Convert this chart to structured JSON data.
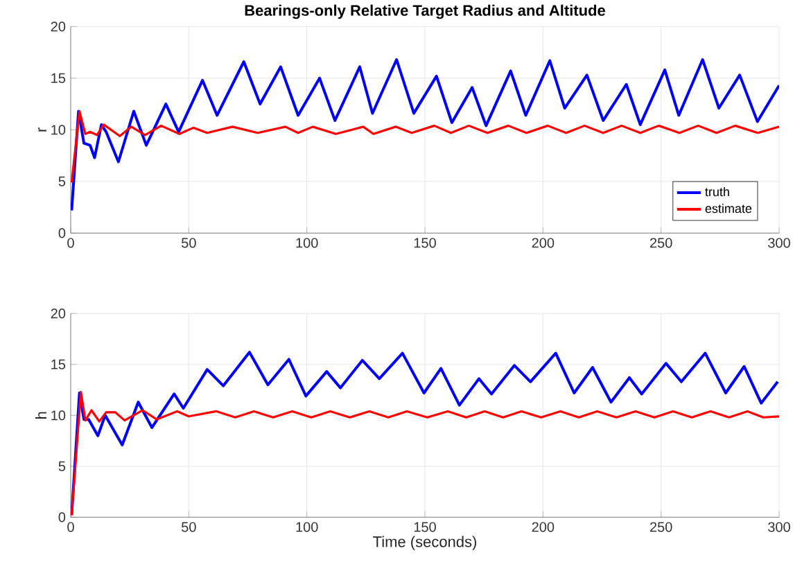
{
  "chart_data": [
    {
      "type": "line",
      "title": "Bearings-only Relative Target Radius and Altitude",
      "ylabel": "r",
      "xlim": [
        0,
        300
      ],
      "ylim": [
        0,
        20
      ],
      "xticks": [
        0,
        50,
        100,
        150,
        200,
        250,
        300
      ],
      "yticks": [
        0,
        5,
        10,
        15,
        20
      ],
      "grid": true,
      "legend": "bottom right",
      "series": [
        {
          "name": "truth",
          "color": "#0000ff",
          "x": [
            0.4,
            3.3,
            5.6,
            8.2,
            10.1,
            13,
            15,
            20.2,
            26.7,
            32,
            40.3,
            45.7,
            55.8,
            62,
            73.3,
            80.2,
            88.9,
            96.3,
            105.4,
            111.9,
            122.4,
            127.8,
            138,
            145.3,
            154.9,
            161.4,
            170,
            175.9,
            186.3,
            192.7,
            202.9,
            209.2,
            218.6,
            225.5,
            235.3,
            241.2,
            251.6,
            257.5,
            267.6,
            274.5,
            283.3,
            290.8,
            300
          ],
          "values": [
            2.2,
            11.8,
            8.7,
            8.5,
            7.3,
            10.5,
            9.8,
            6.9,
            11.8,
            8.5,
            12.5,
            9.8,
            14.8,
            11.4,
            16.6,
            12.5,
            16.1,
            11.4,
            15.0,
            10.9,
            16.1,
            11.6,
            16.8,
            11.6,
            15.2,
            10.7,
            14.1,
            10.4,
            15.7,
            11.4,
            16.7,
            12.1,
            15.3,
            10.9,
            14.4,
            10.5,
            15.8,
            11.4,
            16.8,
            12.1,
            15.3,
            10.8,
            14.3
          ]
        },
        {
          "name": "estimate",
          "color": "#ff0000",
          "x": [
            0.4,
            3.7,
            6.2,
            8.2,
            11.1,
            14,
            20.8,
            25.7,
            31.5,
            38.3,
            46,
            51.9,
            57.8,
            68.5,
            79.2,
            90.9,
            96.3,
            102.5,
            112.3,
            123.9,
            128.2,
            137.6,
            144.4,
            154,
            161,
            168.6,
            176.5,
            185.3,
            193,
            202,
            209.8,
            217.6,
            225.5,
            233.3,
            241.2,
            249,
            257.8,
            265.7,
            273.5,
            281.4,
            291,
            300
          ],
          "values": [
            4.9,
            11.8,
            9.6,
            9.8,
            9.5,
            10.5,
            9.4,
            10.3,
            9.5,
            10.4,
            9.6,
            10.2,
            9.7,
            10.3,
            9.7,
            10.3,
            9.7,
            10.3,
            9.6,
            10.3,
            9.6,
            10.3,
            9.7,
            10.4,
            9.7,
            10.4,
            9.7,
            10.4,
            9.7,
            10.4,
            9.7,
            10.4,
            9.7,
            10.4,
            9.7,
            10.4,
            9.7,
            10.4,
            9.7,
            10.4,
            9.7,
            10.3
          ]
        }
      ]
    },
    {
      "type": "line",
      "xlabel": "Time (seconds)",
      "ylabel": "h",
      "xlim": [
        0,
        300
      ],
      "ylim": [
        0,
        20
      ],
      "xticks": [
        0,
        50,
        100,
        150,
        200,
        250,
        300
      ],
      "yticks": [
        0,
        5,
        10,
        15,
        20
      ],
      "grid": true,
      "series": [
        {
          "color": "#0000ff",
          "x": [
            0.4,
            3.7,
            5.6,
            7.6,
            11.5,
            14.6,
            21.8,
            28.6,
            34.4,
            43.8,
            47.7,
            57.8,
            64.6,
            75.7,
            83.5,
            92.4,
            99.6,
            108.4,
            114.2,
            123.5,
            130.7,
            140.5,
            149.6,
            156.8,
            164.6,
            172.9,
            178.2,
            187.9,
            194.7,
            205.4,
            213.2,
            221,
            228.8,
            236.6,
            241.8,
            252.1,
            258.6,
            268.7,
            277.4,
            285.2,
            292.4,
            299.4
          ],
          "values": [
            0.2,
            12.2,
            9.6,
            9.6,
            8.0,
            10.0,
            7.1,
            11.3,
            8.8,
            12.1,
            10.7,
            14.5,
            12.9,
            16.2,
            13.0,
            15.5,
            11.9,
            14.3,
            12.7,
            15.4,
            13.6,
            16.1,
            12.2,
            14.6,
            11.0,
            13.6,
            12.1,
            14.9,
            13.3,
            16.1,
            12.2,
            14.7,
            11.3,
            13.7,
            12.1,
            15.1,
            13.3,
            16.1,
            12.2,
            14.8,
            11.2,
            13.3
          ]
        },
        {
          "color": "#ff0000",
          "x": [
            0.4,
            4.3,
            6.2,
            8.8,
            12.1,
            15,
            18.9,
            22.8,
            30.5,
            36.4,
            45.1,
            50,
            61.7,
            69.7,
            77.6,
            85.7,
            93.8,
            101.9,
            109.9,
            118.2,
            126.5,
            134.5,
            142.4,
            151,
            159.7,
            167.5,
            175.3,
            183.1,
            190.9,
            199.2,
            207.4,
            215.2,
            223,
            231.1,
            239.2,
            247.2,
            255.1,
            263,
            271,
            278.8,
            286.6,
            293.3,
            300
          ],
          "values": [
            0.2,
            12.3,
            9.5,
            10.5,
            9.4,
            10.3,
            10.3,
            9.5,
            10.5,
            9.6,
            10.4,
            9.9,
            10.4,
            9.8,
            10.4,
            9.8,
            10.4,
            9.8,
            10.4,
            9.8,
            10.4,
            9.8,
            10.4,
            9.8,
            10.4,
            9.8,
            10.4,
            9.8,
            10.4,
            9.8,
            10.4,
            9.8,
            10.4,
            9.8,
            10.4,
            9.8,
            10.4,
            9.8,
            10.4,
            9.8,
            10.4,
            9.8,
            9.9
          ]
        }
      ]
    }
  ]
}
